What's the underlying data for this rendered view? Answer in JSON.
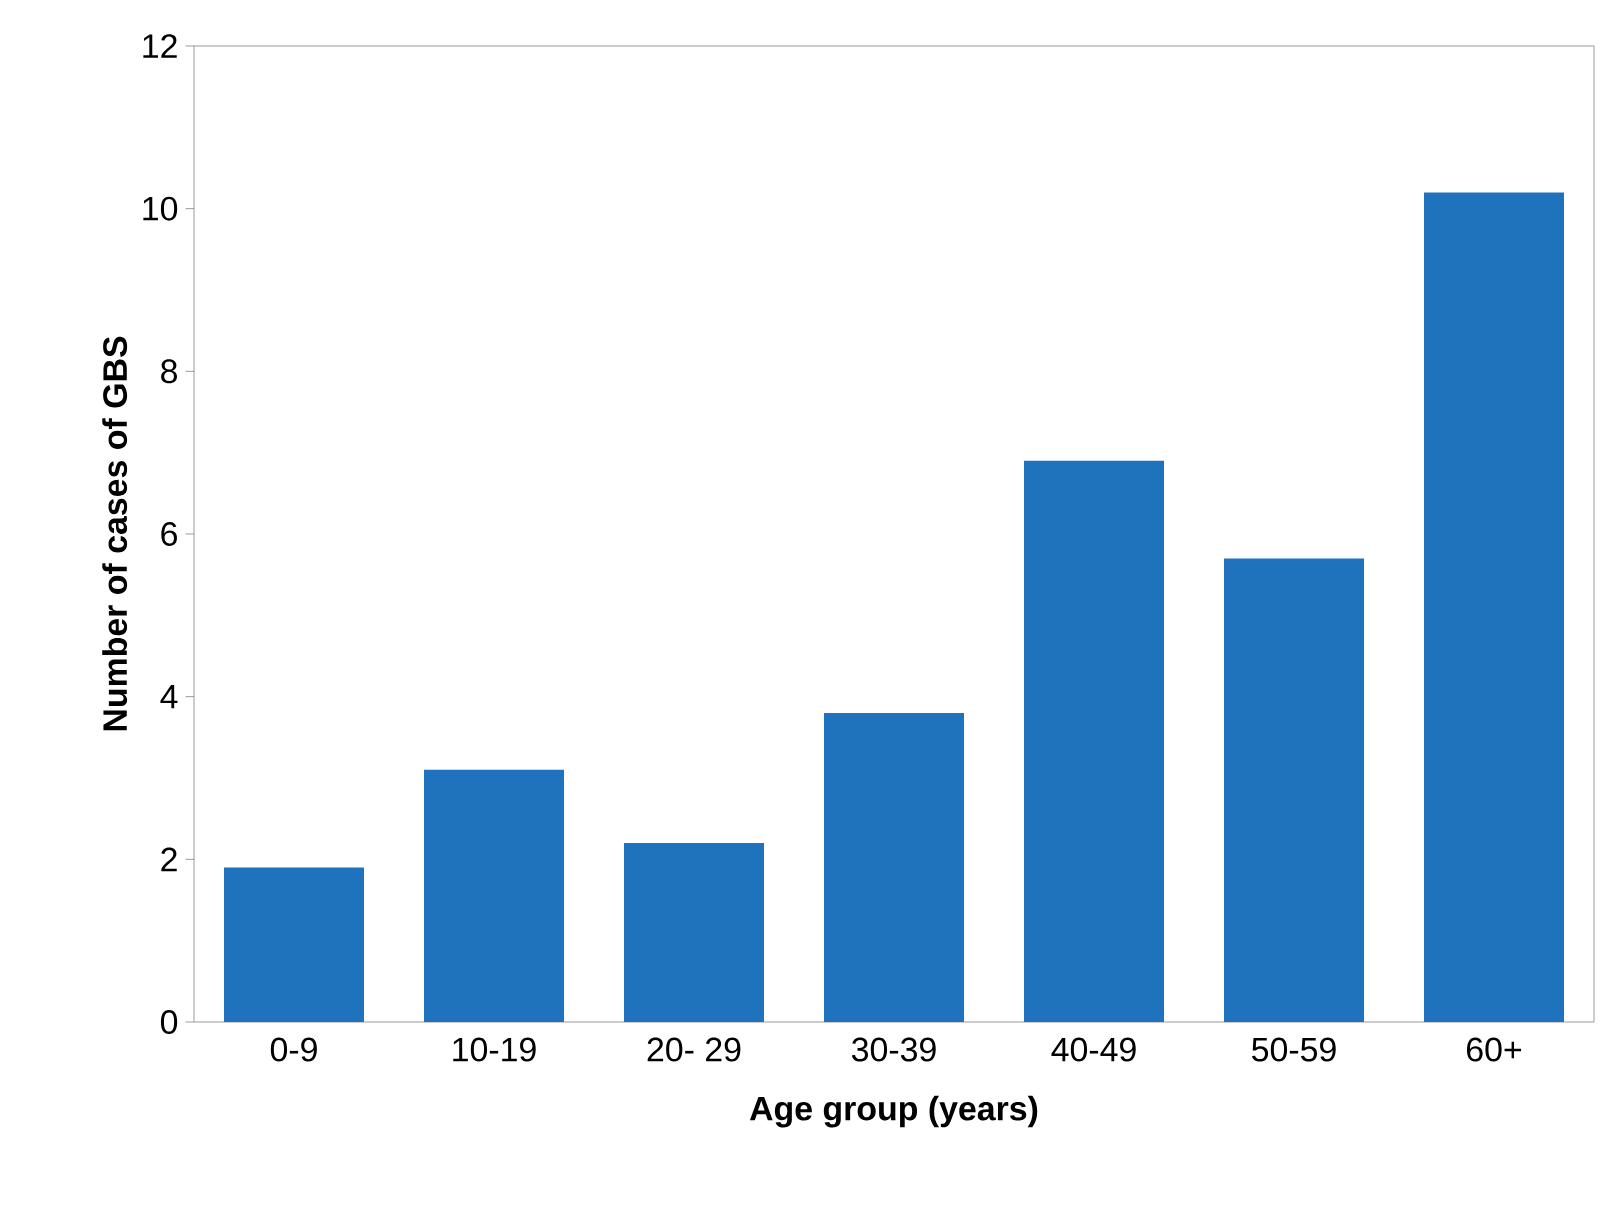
{
  "chart_data": {
    "type": "bar",
    "xlabel": "Age group (years)",
    "ylabel": "Number of cases of GBS",
    "categories": [
      "0-9",
      "10-19",
      "20- 29",
      "30-39",
      "40-49",
      "50-59",
      "60+"
    ],
    "values": [
      1.9,
      3.1,
      2.2,
      3.8,
      6.9,
      5.7,
      10.2
    ],
    "color": "#1f72bc",
    "ylim": [
      0,
      12
    ],
    "yticks": [
      0,
      2,
      4,
      6,
      8,
      10,
      12
    ],
    "grid": false
  }
}
